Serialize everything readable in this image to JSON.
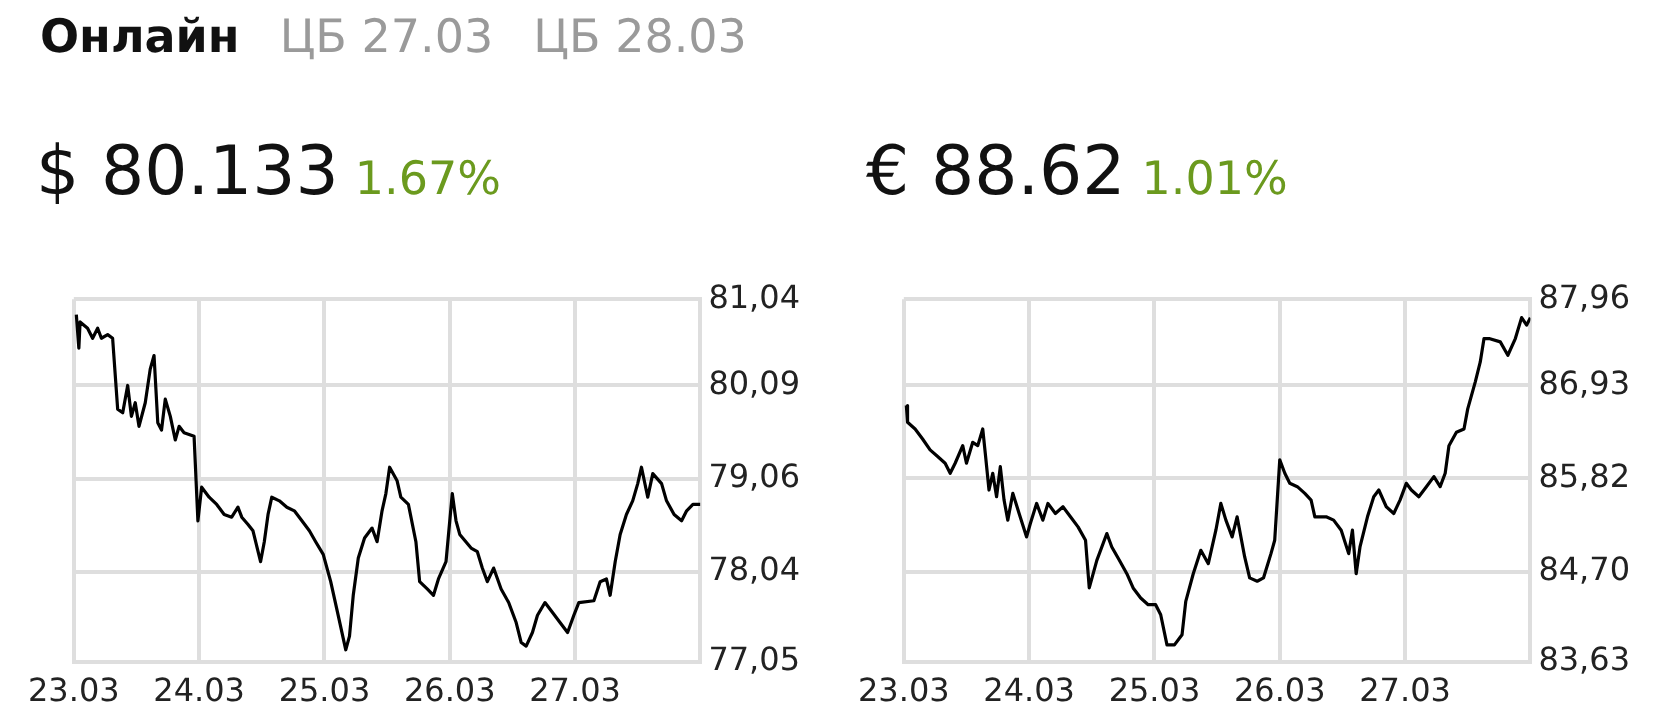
{
  "chart_data": [
    {
      "type": "line",
      "title": "$ 80.133",
      "subtitle": "1.67%",
      "annotations": [
        "Онлайн",
        "ЦБ 27.03",
        "ЦБ 28.03"
      ],
      "grid": true,
      "legend": false,
      "marker": "none",
      "line_style": "solid",
      "xlim": [
        "--03-23",
        "--03-28"
      ],
      "xticks": [
        {
          "value": "--03-23",
          "label": "23.03"
        },
        {
          "value": "--03-24",
          "label": "24.03"
        },
        {
          "value": "--03-25",
          "label": "25.03"
        },
        {
          "value": "--03-26",
          "label": "26.03"
        },
        {
          "value": "--03-27",
          "label": "27.03"
        }
      ],
      "ylim": [
        77.05,
        81.04
      ],
      "yticks": [
        {
          "value": 77.05,
          "label": "77,05"
        },
        {
          "value": 78.04,
          "label": "78,04"
        },
        {
          "value": 79.06,
          "label": "79,06"
        },
        {
          "value": 80.09,
          "label": "80,09"
        },
        {
          "value": 81.04,
          "label": "81,04"
        }
      ],
      "series": [
        {
          "color": "#000000",
          "x": [
            "--03-23T00:29",
            "--03-23T00:58",
            "--03-23T01:12",
            "--03-23T02:38",
            "--03-23T03:36",
            "--03-23T04:34",
            "--03-23T05:17",
            "--03-23T06:29",
            "--03-23T07:26",
            "--03-23T08:24",
            "--03-23T09:22",
            "--03-23T10:19",
            "--03-23T11:02",
            "--03-23T11:46",
            "--03-23T12:29",
            "--03-23T13:41",
            "--03-23T14:38",
            "--03-23T15:22",
            "--03-23T16:05",
            "--03-23T16:48",
            "--03-23T17:31",
            "--03-23T18:29",
            "--03-23T19:26",
            "--03-23T20:10",
            "--03-23T21:07",
            "--03-23T23:02",
            "--03-23T23:46",
            "--03-24T00:29",
            "--03-24T01:55",
            "--03-24T03:22",
            "--03-24T04:48",
            "--03-24T06:14",
            "--03-24T07:26",
            "--03-24T08:10",
            "--03-24T09:22",
            "--03-24T10:19",
            "--03-24T11:46",
            "--03-24T12:29",
            "--03-24T13:12",
            "--03-24T13:55",
            "--03-24T15:22",
            "--03-24T16:48",
            "--03-24T18:14",
            "--03-24T19:41",
            "--03-24T21:07",
            "--03-24T22:19",
            "--03-24T23:46",
            "--03-25T01:12",
            "--03-25T02:38",
            "--03-25T04:05",
            "--03-25T04:48",
            "--03-25T05:31",
            "--03-25T06:29",
            "--03-25T07:41",
            "--03-25T09:07",
            "--03-25T10:05",
            "--03-25T11:02",
            "--03-25T11:46",
            "--03-25T12:29",
            "--03-25T13:55",
            "--03-25T14:38",
            "--03-25T16:05",
            "--03-25T17:31",
            "--03-25T18:14",
            "--03-25T19:41",
            "--03-25T20:53",
            "--03-25T21:50",
            "--03-25T23:17",
            "--03-26T00:29",
            "--03-26T01:12",
            "--03-26T01:55",
            "--03-26T04:05",
            "--03-26T05:17",
            "--03-26T06:14",
            "--03-26T07:12",
            "--03-26T08:24",
            "--03-26T09:50",
            "--03-26T11:17",
            "--03-26T12:43",
            "--03-26T13:41",
            "--03-26T14:38",
            "--03-26T15:50",
            "--03-26T16:48",
            "--03-26T18:14",
            "--03-26T19:41",
            "--03-26T21:07",
            "--03-26T22:34",
            "--03-26T23:46",
            "--03-27T00:43",
            "--03-27T03:36",
            "--03-27T04:48",
            "--03-27T06:00",
            "--03-27T06:43",
            "--03-27T07:41",
            "--03-27T08:38",
            "--03-27T09:50",
            "--03-27T11:02",
            "--03-27T12:00",
            "--03-27T12:43",
            "--03-27T13:55",
            "--03-27T14:53",
            "--03-27T16:34",
            "--03-27T17:31",
            "--03-27T18:58",
            "--03-27T20:24",
            "--03-27T21:22",
            "--03-27T22:34",
            "--03-28T00:00"
          ],
          "values": [
            80.87,
            80.5,
            80.79,
            80.72,
            80.61,
            80.72,
            80.61,
            80.65,
            80.61,
            79.83,
            79.79,
            80.09,
            79.75,
            79.9,
            79.64,
            79.9,
            80.27,
            80.42,
            79.68,
            79.6,
            79.94,
            79.75,
            79.49,
            79.64,
            79.57,
            79.53,
            78.6,
            78.97,
            78.86,
            78.78,
            78.67,
            78.64,
            78.75,
            78.64,
            78.56,
            78.49,
            78.15,
            78.37,
            78.67,
            78.86,
            78.82,
            78.75,
            78.71,
            78.6,
            78.49,
            78.37,
            78.23,
            77.93,
            77.56,
            77.18,
            77.33,
            77.78,
            78.19,
            78.41,
            78.52,
            78.37,
            78.71,
            78.9,
            79.19,
            79.04,
            78.86,
            78.78,
            78.37,
            77.93,
            77.85,
            77.78,
            77.96,
            78.15,
            78.9,
            78.6,
            78.45,
            78.3,
            78.26,
            78.08,
            77.93,
            78.08,
            77.85,
            77.7,
            77.48,
            77.26,
            77.22,
            77.37,
            77.56,
            77.7,
            77.59,
            77.48,
            77.37,
            77.56,
            77.7,
            77.72,
            77.93,
            77.96,
            77.78,
            78.15,
            78.45,
            78.67,
            78.82,
            79.01,
            79.19,
            78.86,
            79.12,
            79.01,
            78.82,
            78.67,
            78.6,
            78.71,
            78.78,
            78.78
          ]
        }
      ]
    },
    {
      "type": "line",
      "title": "€ 88.62",
      "subtitle": "1.01%",
      "grid": true,
      "legend": false,
      "marker": "none",
      "line_style": "solid",
      "xlim": [
        "--03-23",
        "--03-28"
      ],
      "xticks": [
        {
          "value": "--03-23",
          "label": "23.03"
        },
        {
          "value": "--03-24",
          "label": "24.03"
        },
        {
          "value": "--03-25",
          "label": "25.03"
        },
        {
          "value": "--03-26",
          "label": "26.03"
        },
        {
          "value": "--03-27",
          "label": "27.03"
        }
      ],
      "ylim": [
        83.63,
        87.96
      ],
      "yticks": [
        {
          "value": 83.63,
          "label": "83,63"
        },
        {
          "value": 84.7,
          "label": "84,70"
        },
        {
          "value": 85.82,
          "label": "85,82"
        },
        {
          "value": 86.93,
          "label": "86,93"
        },
        {
          "value": 87.96,
          "label": "87,96"
        }
      ],
      "series": [
        {
          "color": "#000000",
          "x": [
            "--03-23T00:29",
            "--03-23T00:43",
            "--03-23T02:10",
            "--03-23T03:36",
            "--03-23T05:02",
            "--03-23T06:29",
            "--03-23T07:55",
            "--03-23T08:53",
            "--03-23T09:50",
            "--03-23T11:17",
            "--03-23T12:00",
            "--03-23T13:12",
            "--03-23T14:10",
            "--03-23T15:07",
            "--03-23T15:36",
            "--03-23T16:19",
            "--03-23T17:02",
            "--03-23T17:46",
            "--03-23T18:29",
            "--03-23T19:12",
            "--03-23T19:55",
            "--03-23T20:53",
            "--03-23T22:05",
            "--03-23T23:31",
            "--03-24T00:14",
            "--03-24T01:26",
            "--03-24T02:38",
            "--03-24T03:36",
            "--03-24T05:02",
            "--03-24T06:29",
            "--03-24T07:55",
            "--03-24T09:22",
            "--03-24T10:48",
            "--03-24T11:31",
            "--03-24T12:58",
            "--03-24T14:53",
            "--03-24T15:50",
            "--03-24T17:17",
            "--03-24T18:43",
            "--03-24T19:55",
            "--03-24T21:22",
            "--03-24T22:48",
            "--03-25T00:14",
            "--03-25T01:12",
            "--03-25T02:24",
            "--03-25T03:50",
            "--03-25T05:17",
            "--03-25T06:00",
            "--03-25T07:26",
            "--03-25T08:53",
            "--03-25T10:19",
            "--03-25T11:46",
            "--03-25T12:43",
            "--03-25T13:41",
            "--03-25T14:53",
            "--03-25T15:50",
            "--03-25T17:17",
            "--03-25T18:14",
            "--03-25T19:41",
            "--03-25T20:53",
            "--03-25T22:19",
            "--03-25T23:02",
            "--03-26T00:00",
            "--03-26T00:58",
            "--03-26T01:55",
            "--03-26T03:22",
            "--03-26T04:48",
            "--03-26T06:00",
            "--03-26T06:43",
            "--03-26T08:53",
            "--03-26T10:19",
            "--03-26T11:46",
            "--03-26T13:12",
            "--03-26T13:55",
            "--03-26T14:38",
            "--03-26T15:22",
            "--03-26T16:48",
            "--03-26T18:00",
            "--03-26T18:58",
            "--03-26T20:24",
            "--03-26T21:50",
            "--03-26T23:02",
            "--03-27T00:14",
            "--03-27T01:12",
            "--03-27T02:38",
            "--03-27T04:05",
            "--03-27T05:31",
            "--03-27T06:43",
            "--03-27T07:41",
            "--03-27T08:24",
            "--03-27T09:50",
            "--03-27T11:17",
            "--03-27T12:00",
            "--03-27T13:26",
            "--03-27T14:24",
            "--03-27T15:07",
            "--03-27T16:05",
            "--03-27T18:14",
            "--03-27T19:41",
            "--03-27T21:07",
            "--03-27T22:19",
            "--03-27T23:17",
            "--03-28T00:00"
          ],
          "values": [
            86.69,
            86.49,
            86.41,
            86.29,
            86.16,
            86.08,
            86.0,
            85.88,
            86.0,
            86.21,
            86.0,
            86.25,
            86.21,
            86.41,
            86.12,
            85.68,
            85.88,
            85.6,
            85.96,
            85.56,
            85.32,
            85.64,
            85.4,
            85.12,
            85.28,
            85.52,
            85.32,
            85.52,
            85.4,
            85.48,
            85.36,
            85.24,
            85.08,
            84.51,
            84.84,
            85.16,
            85.0,
            84.84,
            84.68,
            84.51,
            84.39,
            84.31,
            84.31,
            84.19,
            83.83,
            83.83,
            83.95,
            84.35,
            84.68,
            84.96,
            84.8,
            85.2,
            85.52,
            85.32,
            85.12,
            85.36,
            84.88,
            84.63,
            84.59,
            84.63,
            84.92,
            85.08,
            86.04,
            85.88,
            85.76,
            85.72,
            85.64,
            85.56,
            85.36,
            85.36,
            85.32,
            85.2,
            84.92,
            85.2,
            84.68,
            85.0,
            85.36,
            85.6,
            85.68,
            85.48,
            85.4,
            85.56,
            85.76,
            85.68,
            85.6,
            85.72,
            85.84,
            85.72,
            85.88,
            86.21,
            86.37,
            86.41,
            86.65,
            86.97,
            87.21,
            87.49,
            87.49,
            87.45,
            87.29,
            87.49,
            87.74,
            87.65,
            87.74
          ]
        }
      ]
    }
  ]
}
